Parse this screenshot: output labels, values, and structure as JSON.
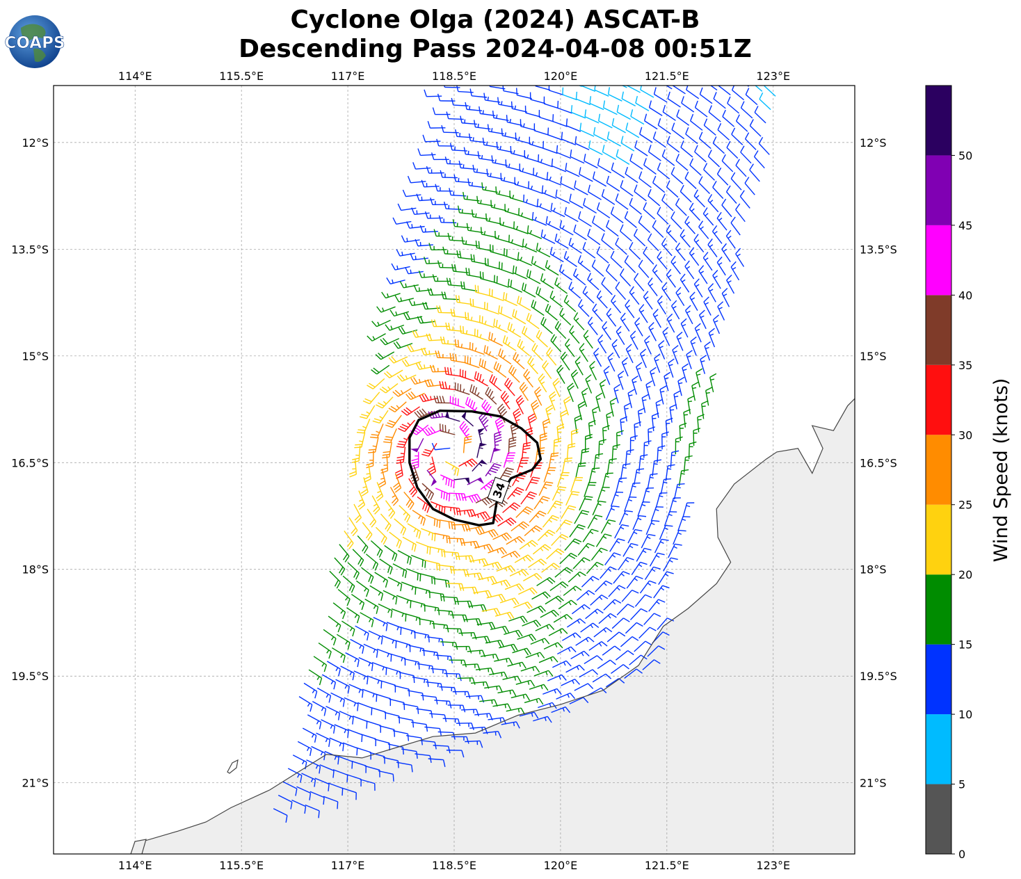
{
  "title": {
    "line1": "Cyclone Olga (2024) ASCAT-B",
    "line2": "Descending Pass 2024-04-08 00:51Z"
  },
  "logo": {
    "text": "COAPS"
  },
  "map": {
    "lon_range": [
      112.85,
      124.15
    ],
    "lat_range": [
      -22.0,
      -11.2
    ],
    "lon_ticks": [
      {
        "value": 114,
        "label": "114°E"
      },
      {
        "value": 115.5,
        "label": "115.5°E"
      },
      {
        "value": 117,
        "label": "117°E"
      },
      {
        "value": 118.5,
        "label": "118.5°E"
      },
      {
        "value": 120,
        "label": "120°E"
      },
      {
        "value": 121.5,
        "label": "121.5°E"
      },
      {
        "value": 123,
        "label": "123°E"
      }
    ],
    "lat_ticks": [
      {
        "value": -12,
        "label": "12°S"
      },
      {
        "value": -13.5,
        "label": "13.5°S"
      },
      {
        "value": -15,
        "label": "15°S"
      },
      {
        "value": -16.5,
        "label": "16.5°S"
      },
      {
        "value": -18,
        "label": "18°S"
      },
      {
        "value": -19.5,
        "label": "19.5°S"
      },
      {
        "value": -21,
        "label": "21°S"
      }
    ],
    "gridlines": true,
    "storm_center": {
      "lon": 118.45,
      "lat": -16.35
    },
    "contour_label": "34",
    "contour_34kt": [
      [
        118.3,
        -15.77
      ],
      [
        118.75,
        -15.78
      ],
      [
        119.15,
        -15.85
      ],
      [
        119.45,
        -16.02
      ],
      [
        119.67,
        -16.22
      ],
      [
        119.72,
        -16.45
      ],
      [
        119.6,
        -16.6
      ],
      [
        119.3,
        -16.72
      ],
      [
        119.1,
        -17.05
      ],
      [
        119.05,
        -17.35
      ],
      [
        118.85,
        -17.38
      ],
      [
        118.5,
        -17.3
      ],
      [
        118.2,
        -17.15
      ],
      [
        117.98,
        -16.85
      ],
      [
        117.87,
        -16.5
      ],
      [
        117.87,
        -16.15
      ],
      [
        118.0,
        -15.9
      ],
      [
        118.3,
        -15.77
      ]
    ],
    "coastline_australia": [
      [
        113.9,
        -22.15
      ],
      [
        114.12,
        -21.82
      ],
      [
        114.6,
        -21.68
      ],
      [
        115.0,
        -21.55
      ],
      [
        115.35,
        -21.35
      ],
      [
        115.9,
        -21.1
      ],
      [
        116.3,
        -20.85
      ],
      [
        116.7,
        -20.6
      ],
      [
        117.2,
        -20.65
      ],
      [
        117.7,
        -20.5
      ],
      [
        118.2,
        -20.35
      ],
      [
        118.8,
        -20.3
      ],
      [
        119.4,
        -20.05
      ],
      [
        120.0,
        -19.9
      ],
      [
        120.6,
        -19.7
      ],
      [
        121.1,
        -19.35
      ],
      [
        121.45,
        -18.8
      ],
      [
        121.8,
        -18.55
      ],
      [
        122.2,
        -18.2
      ],
      [
        122.4,
        -17.9
      ],
      [
        122.22,
        -17.55
      ],
      [
        122.2,
        -17.15
      ],
      [
        122.45,
        -16.8
      ],
      [
        122.9,
        -16.45
      ],
      [
        123.05,
        -16.35
      ],
      [
        123.35,
        -16.3
      ],
      [
        123.55,
        -16.65
      ],
      [
        123.7,
        -16.3
      ],
      [
        123.55,
        -15.98
      ],
      [
        123.85,
        -16.05
      ],
      [
        124.05,
        -15.7
      ],
      [
        124.15,
        -15.6
      ]
    ],
    "land_color": "#eeeeee",
    "ocean_color": "#ffffff"
  },
  "swath": {
    "corners": [
      [
        118.35,
        -11.2
      ],
      [
        123.2,
        -11.2
      ],
      [
        121.2,
        -19.55
      ],
      [
        115.9,
        -21.5
      ]
    ],
    "wind_direction": "cyclonic (clockwise, southern hemisphere)"
  },
  "colorbar": {
    "label": "Wind Speed (knots)",
    "ticks": [
      "0",
      "5",
      "10",
      "15",
      "20",
      "25",
      "30",
      "35",
      "40",
      "45",
      "50"
    ],
    "bins": [
      {
        "range": [
          0,
          5
        ],
        "color": "#555555"
      },
      {
        "range": [
          5,
          10
        ],
        "color": "#00bbff"
      },
      {
        "range": [
          10,
          15
        ],
        "color": "#0033ff"
      },
      {
        "range": [
          15,
          20
        ],
        "color": "#008c00"
      },
      {
        "range": [
          20,
          25
        ],
        "color": "#ffd20f"
      },
      {
        "range": [
          25,
          30
        ],
        "color": "#ff8c00"
      },
      {
        "range": [
          30,
          35
        ],
        "color": "#ff0f0f"
      },
      {
        "range": [
          35,
          40
        ],
        "color": "#7f3b29"
      },
      {
        "range": [
          40,
          45
        ],
        "color": "#ff00ff"
      },
      {
        "range": [
          45,
          50
        ],
        "color": "#8000b3"
      },
      {
        "range": [
          50,
          55
        ],
        "color": "#2b0060"
      }
    ]
  }
}
